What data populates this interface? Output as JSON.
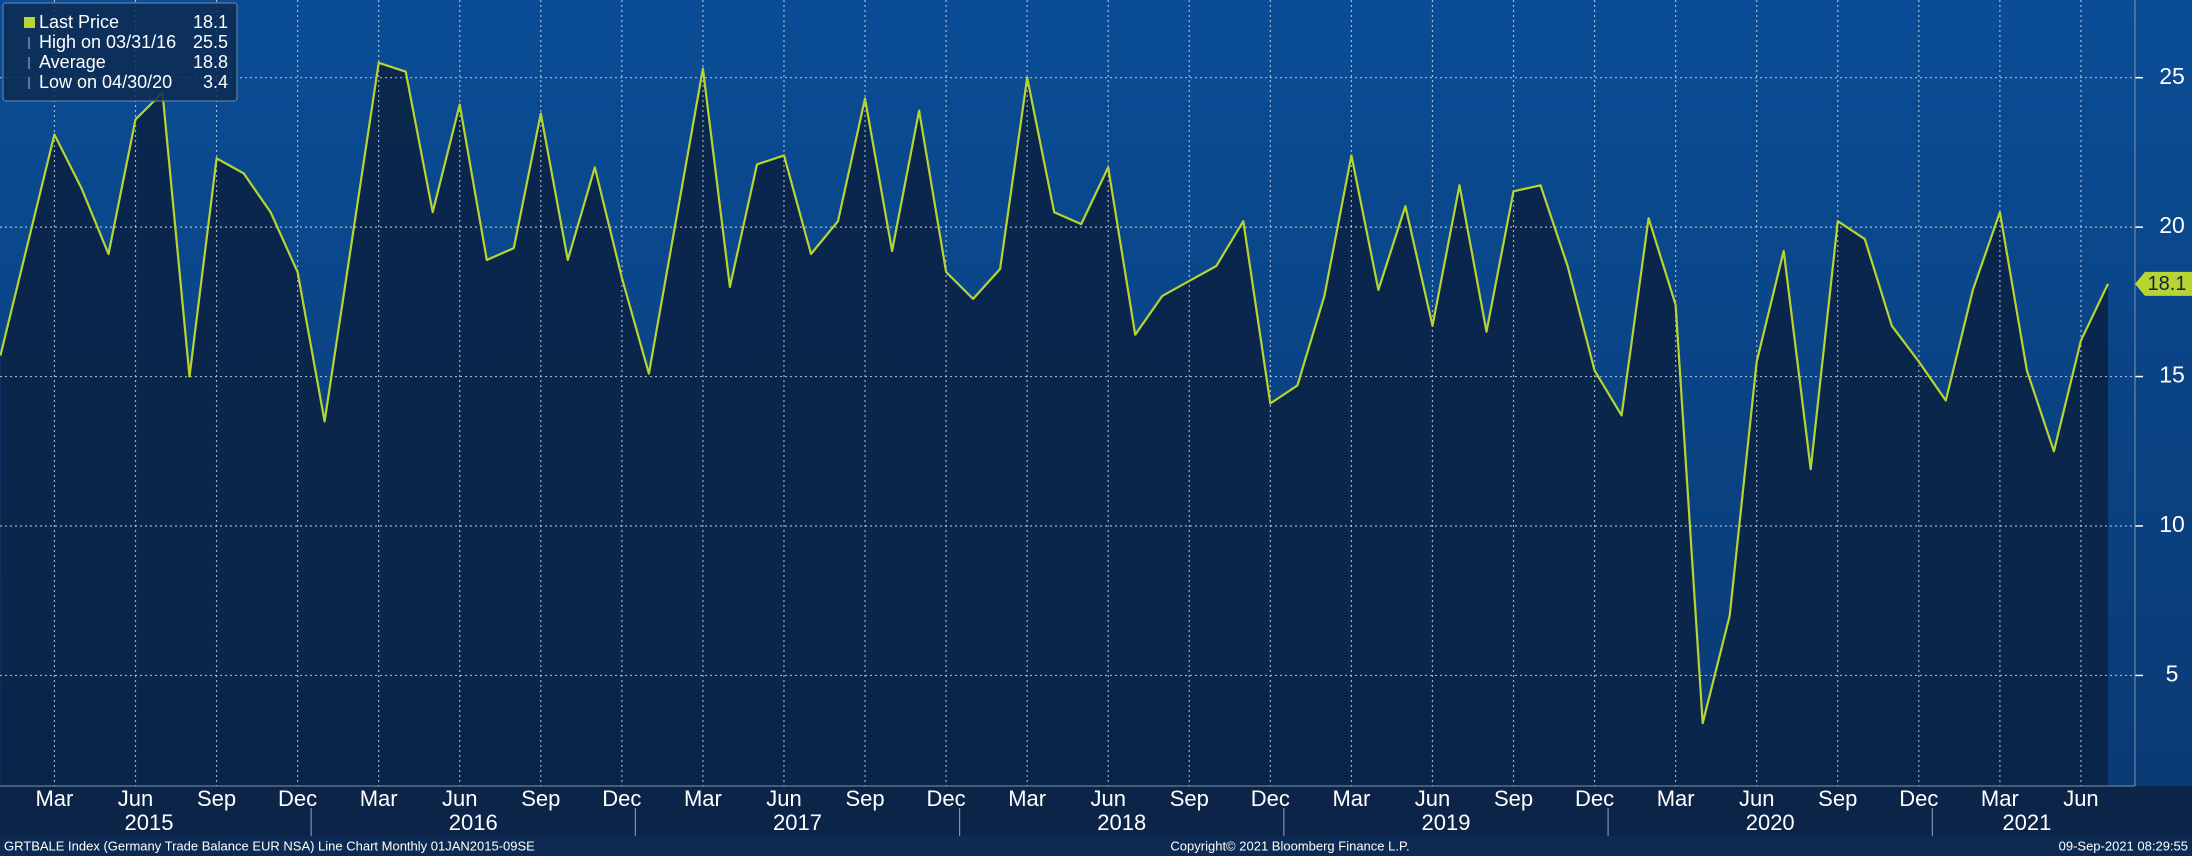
{
  "chart_data": {
    "type": "line",
    "categories": [
      null,
      null,
      "Mar",
      null,
      null,
      "Jun",
      null,
      null,
      "Sep",
      null,
      null,
      "Dec",
      null,
      null,
      "Mar",
      null,
      null,
      "Jun",
      null,
      null,
      "Sep",
      null,
      null,
      "Dec",
      null,
      null,
      "Mar",
      null,
      null,
      "Jun",
      null,
      null,
      "Sep",
      null,
      null,
      "Dec",
      null,
      null,
      "Mar",
      null,
      null,
      "Jun",
      null,
      null,
      "Sep",
      null,
      null,
      "Dec",
      null,
      null,
      "Mar",
      null,
      null,
      "Jun",
      null,
      null,
      "Sep",
      null,
      null,
      "Dec",
      null,
      null,
      "Mar",
      null,
      null,
      "Jun",
      null,
      null,
      "Sep",
      null,
      null,
      "Dec",
      null,
      null,
      "Mar",
      null,
      null,
      "Jun",
      null
    ],
    "years": [
      "2015",
      "2016",
      "2017",
      "2018",
      "2019",
      "2020",
      "2021"
    ],
    "series": [
      {
        "name": "Last Price",
        "color": "#b8d432",
        "values": [
          15.7,
          19.4,
          23.1,
          21.3,
          19.1,
          23.6,
          24.5,
          15.0,
          22.3,
          21.8,
          20.5,
          18.5,
          13.5,
          19.5,
          25.5,
          25.2,
          20.5,
          24.1,
          18.9,
          19.3,
          23.8,
          18.9,
          22.0,
          18.3,
          15.1,
          20.2,
          25.3,
          18.0,
          22.1,
          22.4,
          19.1,
          20.2,
          24.3,
          19.2,
          23.9,
          18.5,
          17.6,
          18.6,
          25.0,
          20.5,
          20.1,
          22.0,
          16.4,
          17.7,
          18.2,
          18.7,
          20.2,
          14.1,
          14.7,
          17.7,
          22.4,
          17.9,
          20.7,
          16.7,
          21.4,
          16.5,
          21.2,
          21.4,
          18.7,
          15.2,
          13.7,
          20.3,
          17.4,
          3.4,
          7.0,
          15.5,
          19.2,
          11.9,
          20.2,
          19.6,
          16.7,
          15.5,
          14.2,
          17.9,
          20.5,
          15.2,
          12.5,
          16.2,
          18.1
        ]
      }
    ],
    "ylim": [
      1.3,
      27.6
    ],
    "yticks": [
      5,
      10,
      15,
      20,
      25
    ],
    "grid": true,
    "legend_position": "upper left",
    "legend": [
      {
        "label": "Last Price",
        "value": 18.1
      },
      {
        "label": "High on 03/31/16",
        "value": 25.5
      },
      {
        "label": "Average",
        "value": 18.8
      },
      {
        "label": "Low on 04/30/20",
        "value": 3.4
      }
    ],
    "footer": {
      "left": "GRTBALE Index (Germany Trade Balance EUR NSA) Line Chart  Monthly 01JAN2015-09SE",
      "center": "Copyright© 2021 Bloomberg Finance L.P.",
      "right": "09-Sep-2021 08:29:55"
    }
  }
}
